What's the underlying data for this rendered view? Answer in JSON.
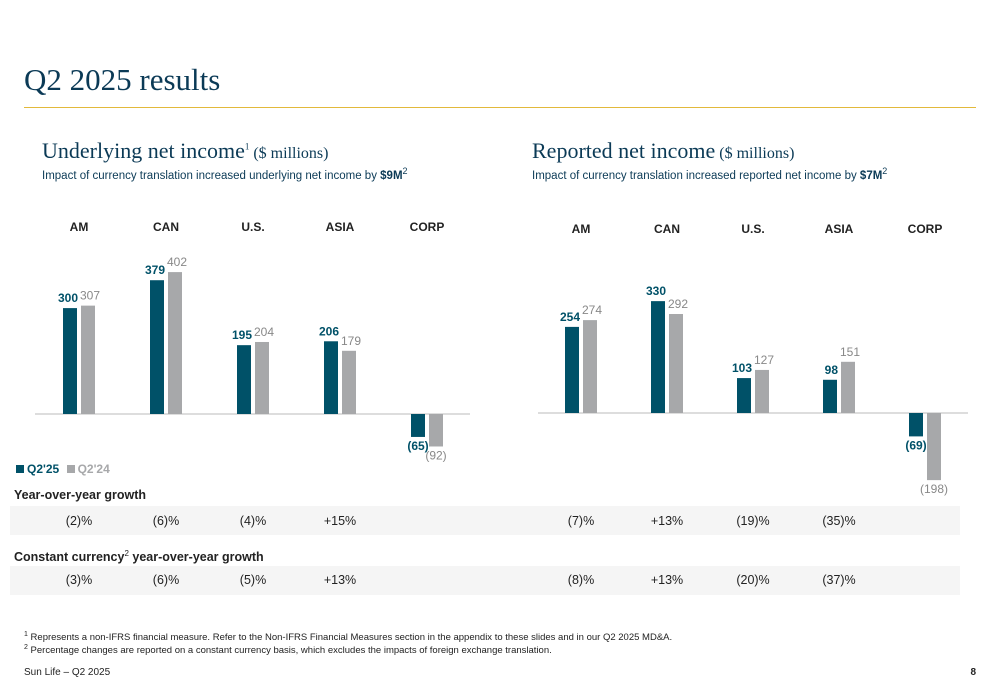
{
  "page": {
    "title": "Q2 2025 results",
    "footer_left": "Sun Life – Q2 2025",
    "page_number": "8"
  },
  "left_section": {
    "title": "Underlying net income",
    "title_sup": "1",
    "title_unit": " ($ millions)",
    "subtitle": "Impact of currency translation increased underlying net income by ",
    "subtitle_bold": "$9M",
    "subtitle_sup": "2"
  },
  "right_section": {
    "title": "Reported net income",
    "title_unit": " ($ millions)",
    "subtitle": "Impact of currency translation increased reported net income by ",
    "subtitle_bold": "$7M",
    "subtitle_sup": "2"
  },
  "legend": {
    "current": "Q2'25",
    "previous": "Q2'24"
  },
  "colors": {
    "current": "#005168",
    "previous": "#a7a8aa",
    "accent_rule": "#e2b93b",
    "title": "#0b3a56"
  },
  "rows": {
    "yoy_label": "Year-over-year growth",
    "cc_label": "Constant currency",
    "cc_sup": "2",
    "cc_label_rest": " year-over-year growth"
  },
  "footnotes": {
    "f1_sup": "1",
    "f1": " Represents a non-IFRS financial measure. Refer to the Non-IFRS Financial Measures section in the appendix to these slides and in our Q2 2025 MD&A.",
    "f2_sup": "2",
    "f2": " Percentage changes are reported on a constant currency basis, which excludes the impacts of foreign exchange translation."
  },
  "chart_data": [
    {
      "type": "bar",
      "title": "Underlying net income ($ millions)",
      "categories": [
        "AM",
        "CAN",
        "U.S.",
        "ASIA",
        "CORP"
      ],
      "series": [
        {
          "name": "Q2'25",
          "values": [
            300,
            379,
            195,
            206,
            -65
          ],
          "labels": [
            "300",
            "379",
            "195",
            "206",
            "(65)"
          ]
        },
        {
          "name": "Q2'24",
          "values": [
            307,
            402,
            204,
            179,
            -92
          ],
          "labels": [
            "307",
            "402",
            "204",
            "179",
            "(92)"
          ]
        }
      ],
      "yoy_growth": [
        "(2)%",
        "(6)%",
        "(4)%",
        "+15%",
        ""
      ],
      "constant_currency_growth": [
        "(3)%",
        "(6)%",
        "(5)%",
        "+13%",
        ""
      ]
    },
    {
      "type": "bar",
      "title": "Reported net income ($ millions)",
      "categories": [
        "AM",
        "CAN",
        "U.S.",
        "ASIA",
        "CORP"
      ],
      "series": [
        {
          "name": "Q2'25",
          "values": [
            254,
            330,
            103,
            98,
            -69
          ],
          "labels": [
            "254",
            "330",
            "103",
            "98",
            "(69)"
          ]
        },
        {
          "name": "Q2'24",
          "values": [
            274,
            292,
            127,
            151,
            -198
          ],
          "labels": [
            "274",
            "292",
            "127",
            "151",
            "(198)"
          ]
        }
      ],
      "yoy_growth": [
        "(7)%",
        "+13%",
        "(19)%",
        "(35)%",
        ""
      ],
      "constant_currency_growth": [
        "(8)%",
        "+13%",
        "(20)%",
        "(37)%",
        ""
      ]
    }
  ]
}
